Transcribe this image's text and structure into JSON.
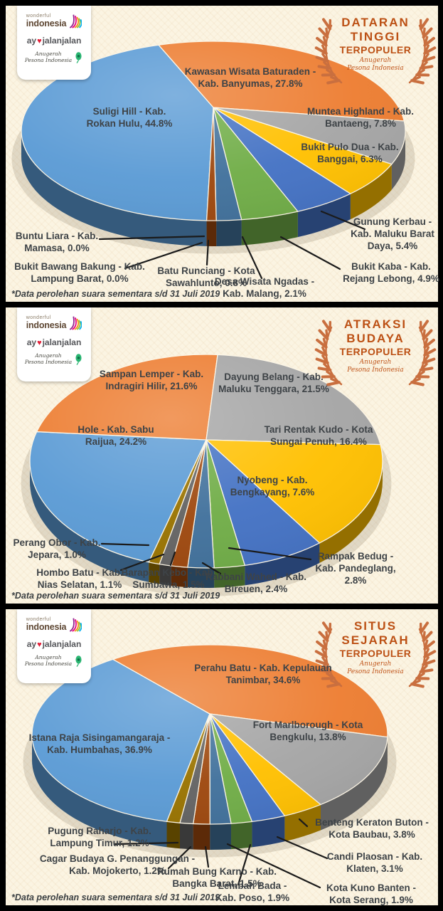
{
  "page": {
    "background": "#000000",
    "panel_background": "#FBF4E2",
    "accent": "#BC5014"
  },
  "logos": {
    "wonderful_small": "wonderful",
    "wonderful_big": "indonesia",
    "ayo_prefix": "ay",
    "heart_icon": "♥",
    "ayo_suffix": "jalanjalan",
    "api_line1": "Anugerah",
    "api_line2": "Pesona Indonesia"
  },
  "badge": {
    "subtitle_line1": "Anugerah",
    "subtitle_line2": "Pesona Indonesia"
  },
  "footnote": "*Data perolehan suara sementara s/d 31 Juli 2019",
  "panels": [
    {
      "badge_lines": [
        "DATARAN",
        "TINGGI",
        "TERPOPULER"
      ]
    },
    {
      "badge_lines": [
        "ATRAKSI",
        "BUDAYA",
        "TERPOPULER"
      ]
    },
    {
      "badge_lines": [
        "SITUS",
        "SEJARAH",
        "TERPOPULER"
      ]
    }
  ],
  "chart_data": [
    {
      "type": "pie",
      "title": "Dataran Tinggi Terpopuler",
      "label_suffix": "%",
      "start_angle_deg": 182,
      "slices": [
        {
          "label": "Suligi Hill - Kab. Rokan Hulu",
          "value": 44.8,
          "color": "#5B9BD5"
        },
        {
          "label": "Kawasan Wisata Baturaden - Kab. Banyumas",
          "value": 27.8,
          "color": "#ED7D31"
        },
        {
          "label": "Muntea Highland - Kab. Bantaeng",
          "value": 7.8,
          "color": "#A5A5A5"
        },
        {
          "label": "Bukit Pulo Dua - Kab. Banggai",
          "value": 6.3,
          "color": "#FFC000"
        },
        {
          "label": "Gunung Kerbau - Kab. Maluku Barat Daya",
          "value": 5.4,
          "color": "#4472C4"
        },
        {
          "label": "Bukit Kaba - Kab. Rejang Lebong",
          "value": 4.9,
          "color": "#70AD47"
        },
        {
          "label": "Desa Wisata Ngadas - Kab. Malang",
          "value": 2.1,
          "color": "#41719C"
        },
        {
          "label": "Batu Runciang - Kota Sawahlunto",
          "value": 0.8,
          "color": "#9E480E"
        },
        {
          "label": "Bukit Bawang Bakung - Kab. Lampung Barat",
          "value": 0.0,
          "color": "#636363"
        },
        {
          "label": "Buntu Liara - Kab. Mamasa",
          "value": 0.0,
          "color": "#997300"
        }
      ]
    },
    {
      "type": "pie",
      "title": "Atraksi Budaya Terpopuler",
      "label_suffix": "%",
      "start_angle_deg": 199,
      "slices": [
        {
          "label": "Hole - Kab. Sabu Raijua",
          "value": 24.2,
          "color": "#5B9BD5"
        },
        {
          "label": "Sampan Lemper - Kab. Indragiri Hilir",
          "value": 21.6,
          "color": "#ED7D31"
        },
        {
          "label": "Dayung Belang - Kab. Maluku Tenggara",
          "value": 21.5,
          "color": "#A5A5A5"
        },
        {
          "label": "Tari Rentak Kudo - Kota Sungai Penuh",
          "value": 16.4,
          "color": "#FFC000"
        },
        {
          "label": "Nyobeng - Kab. Bengkayang",
          "value": 7.6,
          "color": "#4472C4"
        },
        {
          "label": "Rampak Bedug - Kab. Pandeglang",
          "value": 2.8,
          "color": "#70AD47"
        },
        {
          "label": "Rabbani Wahed - Kab. Bireuen",
          "value": 2.4,
          "color": "#41719C"
        },
        {
          "label": "Barapan Kebo - Kab. Sumbawa",
          "value": 1.5,
          "color": "#9E480E"
        },
        {
          "label": "Hombo Batu - Kab. Nias Selatan",
          "value": 1.1,
          "color": "#636363"
        },
        {
          "label": "Perang Obor - Kab. Jepara",
          "value": 1.0,
          "color": "#997300"
        }
      ]
    },
    {
      "type": "pie",
      "title": "Situs Sejarah Terpopuler",
      "label_suffix": "%",
      "start_angle_deg": 194,
      "slices": [
        {
          "label": "Istana Raja Sisingamangaraja - Kab. Humbahas",
          "value": 36.9,
          "color": "#5B9BD5"
        },
        {
          "label": "Perahu Batu - Kab. Kepulauan Tanimbar",
          "value": 34.6,
          "color": "#ED7D31"
        },
        {
          "label": "Fort Marlborough - Kota Bengkulu",
          "value": 13.8,
          "color": "#A5A5A5"
        },
        {
          "label": "Benteng Keraton Buton - Kota Baubau",
          "value": 3.8,
          "color": "#FFC000"
        },
        {
          "label": "Candi Plaosan - Kab. Klaten",
          "value": 3.1,
          "color": "#4472C4"
        },
        {
          "label": "Lembah Bada - Kab. Poso",
          "value": 1.9,
          "color": "#70AD47"
        },
        {
          "label": "Kota Kuno Banten - Kota Serang",
          "value": 1.9,
          "color": "#41719C"
        },
        {
          "label": "Rumah Bung Karno - Kab. Bangka Barat",
          "value": 1.5,
          "color": "#9E480E"
        },
        {
          "label": "Cagar Budaya G. Penanggungan - Kab. Mojokerto",
          "value": 1.2,
          "color": "#636363"
        },
        {
          "label": "Pugung Raharjo - Kab. Lampung Timur",
          "value": 1.2,
          "color": "#997300"
        }
      ]
    }
  ]
}
